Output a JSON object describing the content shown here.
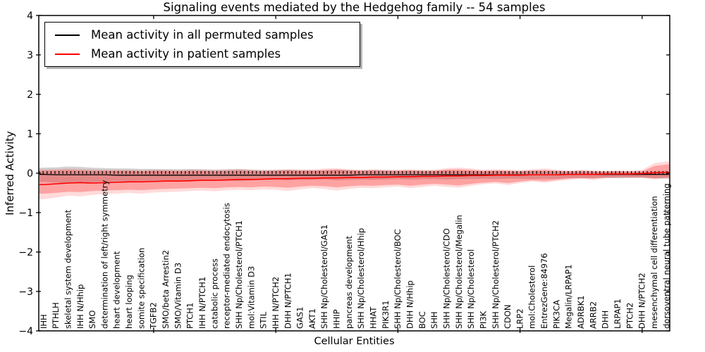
{
  "title": "Signaling events mediated by the Hedgehog family -- 54 samples",
  "legend": {
    "entries": [
      {
        "label": "Mean activity in all permuted samples",
        "color": "#000000"
      },
      {
        "label": "Mean activity in patient samples",
        "color": "#ff0000"
      }
    ]
  },
  "chart_data": {
    "type": "line",
    "title": "Signaling events mediated by the Hedgehog family -- 54 samples",
    "xlabel": "Cellular Entities",
    "ylabel": "Inferred Activity",
    "ylim": [
      -4,
      4
    ],
    "yticks": [
      4,
      3,
      2,
      1,
      0,
      -1,
      -2,
      -3,
      -4
    ],
    "grid": false,
    "legend_position": "upper left",
    "top_tick_indices": [
      9,
      19,
      29,
      39,
      49
    ],
    "zero_line": {
      "style": "dotted",
      "color": "#000000",
      "y": 0
    },
    "categories": [
      "IHH",
      "PTHLH",
      "skeletal system development",
      "IHH N/Hhip",
      "SMO",
      "determination of left/right symmetry",
      "heart development",
      "heart looping",
      "somite specification",
      "TGFB2",
      "SMO/beta Arrestin2",
      "SMO/Vitamin D3",
      "PTCH1",
      "IHH N/PTCH1",
      "catabolic process",
      "receptor-mediated endocytosis",
      "SHH Np/Cholesterol/PTCH1",
      "mol:Vitamin D3",
      "STIL",
      "IHH N/PTCH2",
      "DHH N/PTCH1",
      "GAS1",
      "AKT1",
      "SHH Np/Cholesterol/GAS1",
      "HHIP",
      "pancreas development",
      "SHH Np/Cholesterol/Hhip",
      "HHAT",
      "PIK3R1",
      "SHH Np/Cholesterol/BOC",
      "DHH N/Hhip",
      "BOC",
      "SHH",
      "SHH Np/Cholesterol/CDO",
      "SHH Np/Cholesterol/Megalin",
      "SHH Np/Cholesterol",
      "PI3K",
      "SHH Np/Cholesterol/PTCH2",
      "CDON",
      "LRP2",
      "mol:Cholesterol",
      "EntrezGene:84976",
      "PIK3CA",
      "Megalin/LRPAP1",
      "ADRBK1",
      "ARRB2",
      "DHH",
      "LRPAP1",
      "PTCH2",
      "DHH N/PTCH2",
      "mesenchymal cell differentiation",
      "dorsoventral neural tube patterning"
    ],
    "series": [
      {
        "name": "Mean activity in all permuted samples",
        "color": "#000000",
        "values": [
          -0.03,
          -0.04,
          -0.04,
          -0.04,
          -0.04,
          -0.04,
          -0.05,
          -0.05,
          -0.05,
          -0.05,
          -0.05,
          -0.05,
          -0.05,
          -0.05,
          -0.05,
          -0.05,
          -0.05,
          -0.05,
          -0.05,
          -0.05,
          -0.05,
          -0.05,
          -0.05,
          -0.05,
          -0.05,
          -0.05,
          -0.04,
          -0.04,
          -0.04,
          -0.04,
          -0.04,
          -0.04,
          -0.04,
          -0.04,
          -0.04,
          -0.04,
          -0.04,
          -0.04,
          -0.04,
          -0.04,
          -0.04,
          -0.04,
          -0.04,
          -0.03,
          -0.03,
          -0.03,
          -0.03,
          -0.03,
          -0.03,
          -0.03,
          -0.03,
          -0.03
        ]
      },
      {
        "name": "Mean activity in patient samples",
        "color": "#ff0000",
        "values": [
          -0.29,
          -0.27,
          -0.25,
          -0.24,
          -0.25,
          -0.24,
          -0.23,
          -0.22,
          -0.22,
          -0.21,
          -0.2,
          -0.2,
          -0.19,
          -0.18,
          -0.18,
          -0.17,
          -0.16,
          -0.16,
          -0.15,
          -0.14,
          -0.14,
          -0.13,
          -0.13,
          -0.12,
          -0.12,
          -0.11,
          -0.11,
          -0.1,
          -0.1,
          -0.09,
          -0.09,
          -0.08,
          -0.08,
          -0.07,
          -0.07,
          -0.06,
          -0.06,
          -0.05,
          -0.05,
          -0.05,
          -0.04,
          -0.04,
          -0.04,
          -0.03,
          -0.03,
          -0.03,
          -0.02,
          -0.02,
          -0.02,
          -0.01,
          0.01,
          0.02
        ]
      }
    ],
    "bands": [
      {
        "name": "permuted-samples-band",
        "color": "rgba(0,0,0,0.17)",
        "upper": [
          0.14,
          0.15,
          0.17,
          0.16,
          0.14,
          0.13,
          0.12,
          0.12,
          0.11,
          0.11,
          0.1,
          0.1,
          0.11,
          0.1,
          0.09,
          0.1,
          0.11,
          0.09,
          0.08,
          0.08,
          0.09,
          0.08,
          0.08,
          0.07,
          0.09,
          0.08,
          0.07,
          0.08,
          0.07,
          0.06,
          0.07,
          0.06,
          0.06,
          0.07,
          0.06,
          0.06,
          0.05,
          0.06,
          0.05,
          0.05,
          0.06,
          0.05,
          0.05,
          0.04,
          0.05,
          0.04,
          0.04,
          0.05,
          0.04,
          0.04,
          0.05,
          0.06
        ],
        "lower": [
          -0.22,
          -0.24,
          -0.26,
          -0.25,
          -0.23,
          -0.21,
          -0.21,
          -0.21,
          -0.2,
          -0.2,
          -0.19,
          -0.19,
          -0.2,
          -0.19,
          -0.18,
          -0.19,
          -0.2,
          -0.18,
          -0.17,
          -0.17,
          -0.18,
          -0.17,
          -0.17,
          -0.16,
          -0.18,
          -0.17,
          -0.16,
          -0.17,
          -0.16,
          -0.15,
          -0.16,
          -0.15,
          -0.15,
          -0.16,
          -0.15,
          -0.15,
          -0.14,
          -0.15,
          -0.14,
          -0.14,
          -0.15,
          -0.14,
          -0.14,
          -0.12,
          -0.13,
          -0.12,
          -0.12,
          -0.13,
          -0.12,
          -0.12,
          -0.13,
          -0.14
        ]
      },
      {
        "name": "patient-samples-band-outer",
        "color": "rgba(255,0,0,0.14)",
        "upper": [
          0.1,
          0.11,
          0.12,
          0.11,
          0.1,
          0.09,
          0.09,
          0.09,
          0.08,
          0.09,
          0.09,
          0.08,
          0.09,
          0.09,
          0.08,
          0.09,
          0.1,
          0.09,
          0.08,
          0.09,
          0.1,
          0.09,
          0.09,
          0.12,
          0.13,
          0.1,
          0.09,
          0.1,
          0.09,
          0.09,
          0.1,
          0.09,
          0.09,
          0.13,
          0.14,
          0.12,
          0.09,
          0.1,
          0.09,
          0.08,
          0.1,
          0.12,
          0.09,
          0.07,
          0.09,
          0.07,
          0.06,
          0.07,
          0.06,
          0.08,
          0.26,
          0.3
        ],
        "lower": [
          -0.66,
          -0.62,
          -0.57,
          -0.59,
          -0.55,
          -0.53,
          -0.52,
          -0.5,
          -0.52,
          -0.49,
          -0.48,
          -0.47,
          -0.45,
          -0.44,
          -0.46,
          -0.43,
          -0.42,
          -0.43,
          -0.41,
          -0.42,
          -0.45,
          -0.41,
          -0.38,
          -0.4,
          -0.44,
          -0.4,
          -0.37,
          -0.38,
          -0.36,
          -0.34,
          -0.38,
          -0.35,
          -0.32,
          -0.35,
          -0.37,
          -0.32,
          -0.28,
          -0.26,
          -0.3,
          -0.25,
          -0.21,
          -0.24,
          -0.2,
          -0.17,
          -0.14,
          -0.17,
          -0.13,
          -0.12,
          -0.12,
          -0.12,
          -0.16,
          -0.13
        ]
      },
      {
        "name": "patient-samples-band-inner",
        "color": "rgba(255,0,0,0.26)",
        "upper": [
          0.06,
          0.07,
          0.08,
          0.07,
          0.06,
          0.06,
          0.06,
          0.06,
          0.05,
          0.06,
          0.06,
          0.05,
          0.06,
          0.06,
          0.05,
          0.06,
          0.07,
          0.06,
          0.05,
          0.06,
          0.07,
          0.06,
          0.06,
          0.08,
          0.09,
          0.07,
          0.06,
          0.07,
          0.06,
          0.06,
          0.07,
          0.06,
          0.06,
          0.09,
          0.1,
          0.08,
          0.06,
          0.07,
          0.06,
          0.05,
          0.07,
          0.08,
          0.06,
          0.05,
          0.06,
          0.05,
          0.04,
          0.05,
          0.04,
          0.05,
          0.18,
          0.22
        ],
        "lower": [
          -0.52,
          -0.5,
          -0.47,
          -0.48,
          -0.45,
          -0.44,
          -0.43,
          -0.42,
          -0.43,
          -0.41,
          -0.4,
          -0.39,
          -0.38,
          -0.37,
          -0.38,
          -0.36,
          -0.35,
          -0.36,
          -0.34,
          -0.35,
          -0.37,
          -0.34,
          -0.32,
          -0.33,
          -0.36,
          -0.33,
          -0.31,
          -0.32,
          -0.3,
          -0.29,
          -0.32,
          -0.29,
          -0.27,
          -0.29,
          -0.31,
          -0.27,
          -0.24,
          -0.22,
          -0.25,
          -0.21,
          -0.18,
          -0.2,
          -0.17,
          -0.14,
          -0.12,
          -0.14,
          -0.11,
          -0.1,
          -0.1,
          -0.1,
          -0.13,
          -0.11
        ]
      }
    ]
  }
}
